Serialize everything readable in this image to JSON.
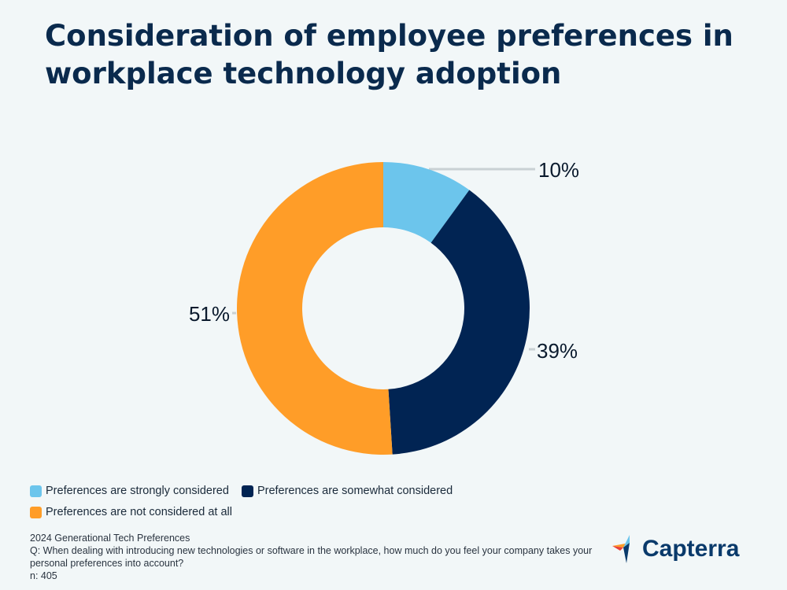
{
  "title": "Consideration of employee preferences in workplace technology adoption",
  "chart_data": {
    "type": "pie",
    "donut": true,
    "categories": [
      "Preferences are strongly considered",
      "Preferences are somewhat considered",
      "Preferences are not considered at all"
    ],
    "values": [
      10,
      39,
      51
    ],
    "data_labels": [
      "10%",
      "39%",
      "51%"
    ],
    "colors": [
      "#6cc5ec",
      "#012453",
      "#ff9d28"
    ],
    "legend_position": "bottom-left"
  },
  "legend": [
    {
      "label": "Preferences are strongly considered",
      "color": "#6cc5ec"
    },
    {
      "label": "Preferences are somewhat considered",
      "color": "#012453"
    },
    {
      "label": "Preferences are not considered at all",
      "color": "#ff9d28"
    }
  ],
  "footer": {
    "source": "2024 Generational Tech Preferences",
    "question": "Q: When dealing with introducing new technologies or software in the workplace, how much do you feel your company takes your personal preferences into account?",
    "n": "n: 405"
  },
  "logo": {
    "text": "Capterra"
  }
}
